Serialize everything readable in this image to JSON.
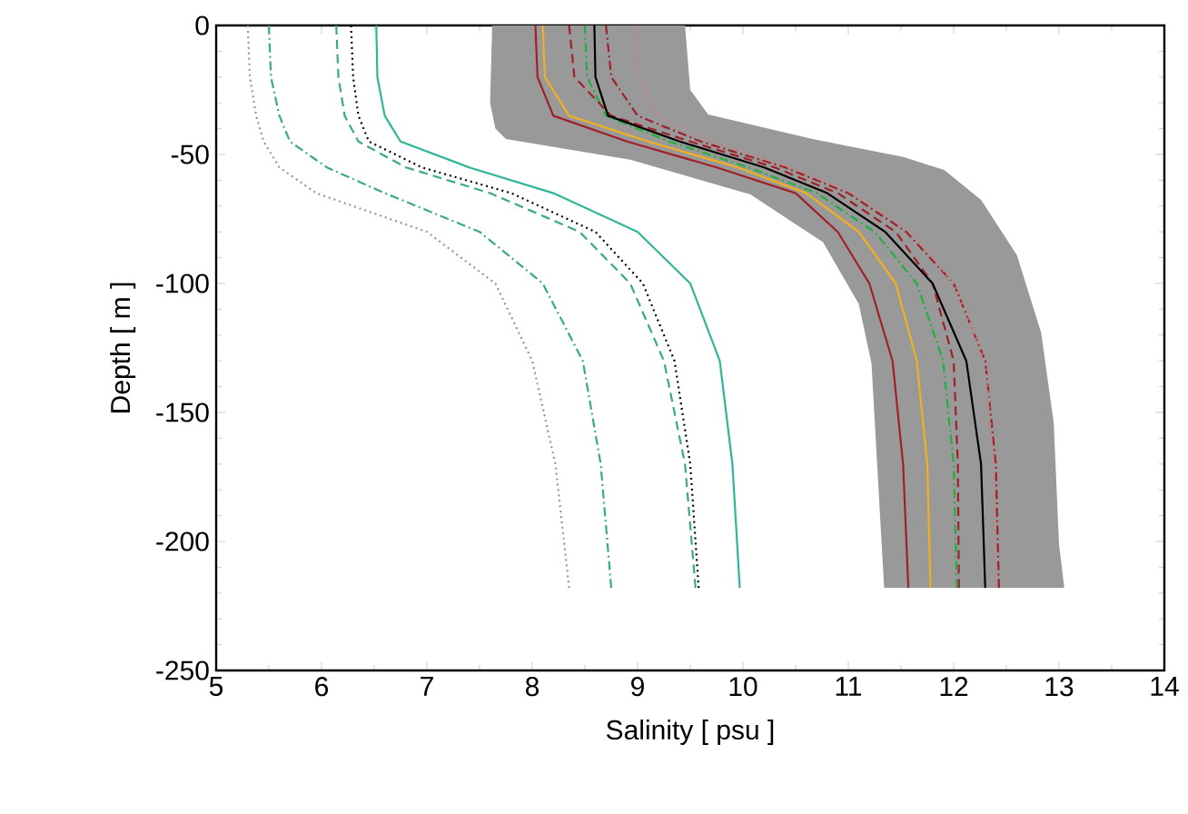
{
  "chart_data": {
    "type": "line",
    "xlabel": "Salinity  [ psu ]",
    "ylabel": "Depth [ m ]",
    "xlim": [
      5,
      14
    ],
    "ylim": [
      -250,
      0
    ],
    "xticks": [
      5,
      6,
      7,
      8,
      9,
      10,
      11,
      12,
      13,
      14
    ],
    "yticks": [
      -250,
      -200,
      -150,
      -100,
      -50,
      0
    ],
    "marker": "none",
    "series": [
      {
        "type": "area",
        "color": "#999999",
        "x": [
          7.62,
          7.6,
          7.65,
          7.75,
          8.93,
          10.07,
          10.76,
          11.1,
          11.22,
          11.34,
          13.05,
          13.0,
          12.95,
          12.83,
          12.6,
          12.26,
          11.91,
          11.52,
          10.66,
          9.67,
          9.5,
          9.45
        ],
        "values": [
          0,
          -30,
          -40,
          -44,
          -52,
          -65.5,
          -84,
          -108,
          -131,
          -218,
          -218,
          -201,
          -154,
          -119,
          -89,
          -67.6,
          -56,
          -51,
          -44,
          -34.5,
          -25,
          0
        ]
      },
      {
        "color": "#8a9a9a",
        "line_style": "dotted",
        "x": [
          5.3,
          5.32,
          5.38,
          5.45,
          5.6,
          5.95,
          7.0,
          7.65,
          8.0,
          8.22,
          8.35
        ],
        "values": [
          0,
          -20,
          -35,
          -45,
          -55,
          -65,
          -80,
          -100,
          -130,
          -170,
          -218
        ]
      },
      {
        "color": "#3aa88a",
        "line_style": "dashdot",
        "x": [
          5.5,
          5.52,
          5.6,
          5.7,
          6.05,
          6.6,
          7.5,
          8.1,
          8.48,
          8.65,
          8.75
        ],
        "values": [
          0,
          -20,
          -35,
          -45,
          -55,
          -65,
          -80,
          -100,
          -130,
          -170,
          -218
        ]
      },
      {
        "color": "#3aa88a",
        "line_style": "dashed",
        "x": [
          6.14,
          6.16,
          6.22,
          6.35,
          6.8,
          7.6,
          8.45,
          8.93,
          9.25,
          9.45,
          9.55
        ],
        "values": [
          0,
          -20,
          -35,
          -45,
          -55,
          -65,
          -80,
          -100,
          -130,
          -170,
          -218
        ]
      },
      {
        "color": "#000000",
        "line_style": "dotted",
        "x": [
          6.28,
          6.3,
          6.35,
          6.45,
          6.95,
          7.8,
          8.6,
          9.05,
          9.35,
          9.5,
          9.58
        ],
        "values": [
          0,
          -20,
          -35,
          -45,
          -55,
          -65,
          -80,
          -100,
          -130,
          -170,
          -218
        ]
      },
      {
        "color": "#2fb59a",
        "line_style": "solid",
        "x": [
          6.52,
          6.53,
          6.6,
          6.75,
          7.4,
          8.2,
          9.0,
          9.5,
          9.78,
          9.9,
          9.97
        ],
        "values": [
          0,
          -20,
          -35,
          -45,
          -55,
          -65,
          -80,
          -100,
          -130,
          -170,
          -218
        ]
      },
      {
        "color": "#a0202a",
        "line_style": "solid",
        "x": [
          8.03,
          8.05,
          8.2,
          8.9,
          9.75,
          10.5,
          10.9,
          11.2,
          11.42,
          11.52,
          11.57
        ],
        "values": [
          0,
          -20,
          -35,
          -45,
          -55,
          -65,
          -80,
          -100,
          -130,
          -170,
          -218
        ]
      },
      {
        "color": "#f0b020",
        "line_style": "solid",
        "x": [
          8.1,
          8.12,
          8.35,
          9.1,
          9.95,
          10.6,
          11.1,
          11.45,
          11.65,
          11.75,
          11.78
        ],
        "values": [
          0,
          -20,
          -35,
          -45,
          -55,
          -65,
          -80,
          -100,
          -130,
          -170,
          -218
        ]
      },
      {
        "color": "#20b040",
        "line_style": "dashdot",
        "x": [
          8.5,
          8.52,
          8.7,
          9.3,
          10.05,
          10.7,
          11.25,
          11.65,
          11.9,
          12.0,
          12.03
        ],
        "values": [
          0,
          -20,
          -35,
          -45,
          -55,
          -65,
          -80,
          -100,
          -130,
          -170,
          -218
        ]
      },
      {
        "color": "#a0202a",
        "line_style": "dashed",
        "x": [
          8.35,
          8.4,
          8.75,
          9.5,
          10.3,
          10.9,
          11.45,
          11.8,
          12.0,
          12.04,
          12.05
        ],
        "values": [
          0,
          -20,
          -35,
          -45,
          -55,
          -65,
          -80,
          -100,
          -130,
          -170,
          -218
        ]
      },
      {
        "color": "#000000",
        "line_style": "solid",
        "x": [
          8.59,
          8.6,
          8.72,
          9.4,
          10.2,
          10.8,
          11.35,
          11.8,
          12.12,
          12.26,
          12.3
        ],
        "values": [
          0,
          -20,
          -35,
          -45,
          -55,
          -65,
          -80,
          -100,
          -130,
          -170,
          -218
        ]
      },
      {
        "color": "#a0202a",
        "line_style": "dashdot",
        "x": [
          8.7,
          8.75,
          9.0,
          9.6,
          10.4,
          11.0,
          11.55,
          12.0,
          12.3,
          12.4,
          12.43
        ],
        "values": [
          0,
          -20,
          -35,
          -45,
          -55,
          -65,
          -80,
          -100,
          -130,
          -170,
          -218
        ]
      },
      {
        "color": "#d08080",
        "line_style": "dotted",
        "x": [
          8.98,
          9.0,
          9.2,
          9.7,
          10.45,
          11.05,
          11.6,
          12.0,
          12.3,
          12.38,
          12.4
        ],
        "values": [
          0,
          -20,
          -35,
          -45,
          -55,
          -65,
          -80,
          -100,
          -130,
          -170,
          -218
        ]
      }
    ]
  }
}
